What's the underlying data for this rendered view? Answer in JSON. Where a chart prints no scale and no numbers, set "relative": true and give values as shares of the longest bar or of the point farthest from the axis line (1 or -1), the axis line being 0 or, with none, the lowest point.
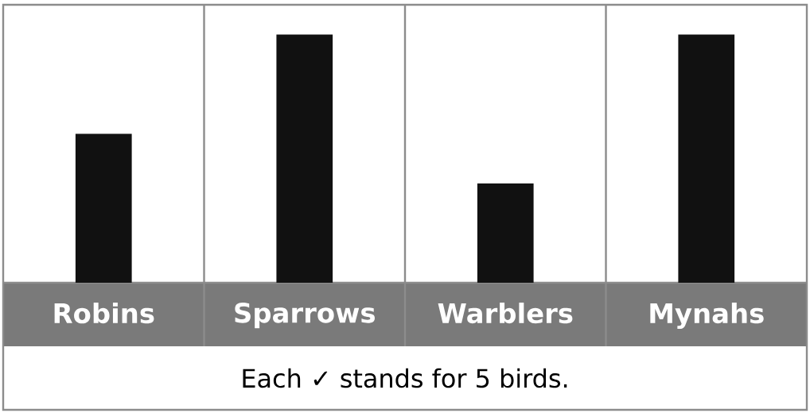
{
  "chart_data": {
    "type": "bar",
    "categories": [
      "Robins",
      "Sparrows",
      "Warblers",
      "Mynahs"
    ],
    "values": [
      0.6,
      1,
      0.4,
      1
    ],
    "relative": true,
    "color": "#111111",
    "annotations": [
      "Each ✓ stands for 5 birds."
    ]
  }
}
